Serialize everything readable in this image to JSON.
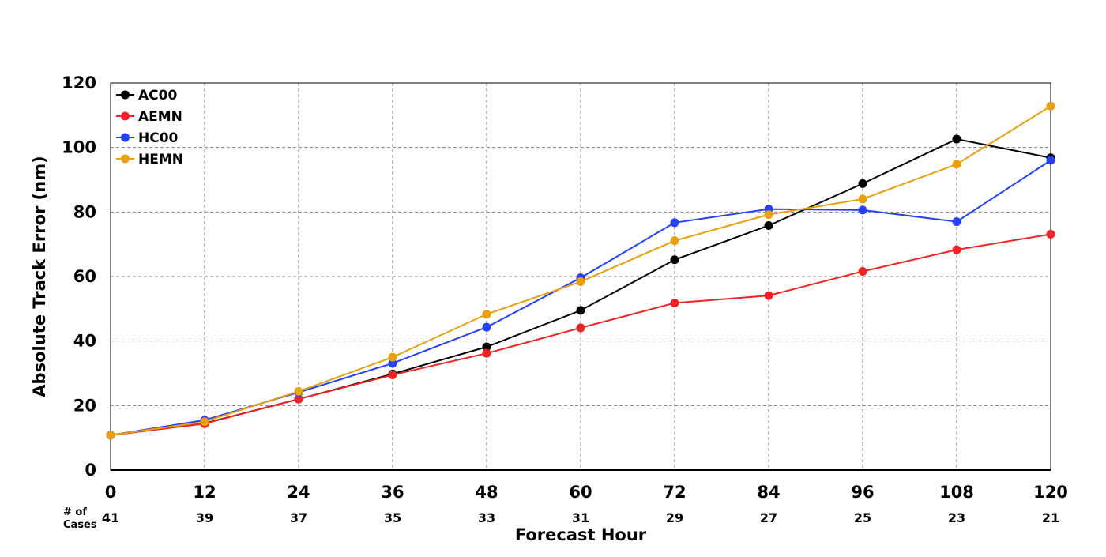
{
  "chart_data": {
    "type": "line",
    "title": "",
    "xlabel": "Forecast Hour",
    "ylabel": "Absolute Track Error (nm)",
    "x": [
      0,
      12,
      24,
      36,
      48,
      60,
      72,
      84,
      96,
      108,
      120
    ],
    "x_tick_labels": [
      "0",
      "12",
      "24",
      "36",
      "48",
      "60",
      "72",
      "84",
      "96",
      "108",
      "120"
    ],
    "y_tick_labels": [
      "0",
      "20",
      "40",
      "60",
      "80",
      "100",
      "120"
    ],
    "xlim": [
      0,
      120
    ],
    "ylim": [
      0,
      120
    ],
    "grid": true,
    "legend_position": "top-left",
    "cases_label": "# of\nCases",
    "cases": [
      "41",
      "39",
      "37",
      "35",
      "33",
      "31",
      "29",
      "27",
      "25",
      "23",
      "21"
    ],
    "series": [
      {
        "name": "AC00",
        "color": "#000000",
        "values": [
          10.8,
          14.5,
          22.0,
          29.8,
          38.2,
          49.5,
          65.2,
          75.8,
          88.8,
          102.6,
          96.8
        ]
      },
      {
        "name": "AEMN",
        "color": "#f02424",
        "values": [
          10.8,
          14.4,
          22.0,
          29.5,
          36.2,
          44.1,
          51.8,
          54.1,
          61.6,
          68.3,
          73.1
        ]
      },
      {
        "name": "HC00",
        "color": "#2541f5",
        "values": [
          10.8,
          15.5,
          24.1,
          33.1,
          44.3,
          59.6,
          76.7,
          80.9,
          80.6,
          77.0,
          96.0
        ]
      },
      {
        "name": "HEMN",
        "color": "#e8a00f",
        "values": [
          10.8,
          15.0,
          24.4,
          35.0,
          48.3,
          58.4,
          71.1,
          79.2,
          84.0,
          94.8,
          112.8
        ]
      }
    ]
  }
}
